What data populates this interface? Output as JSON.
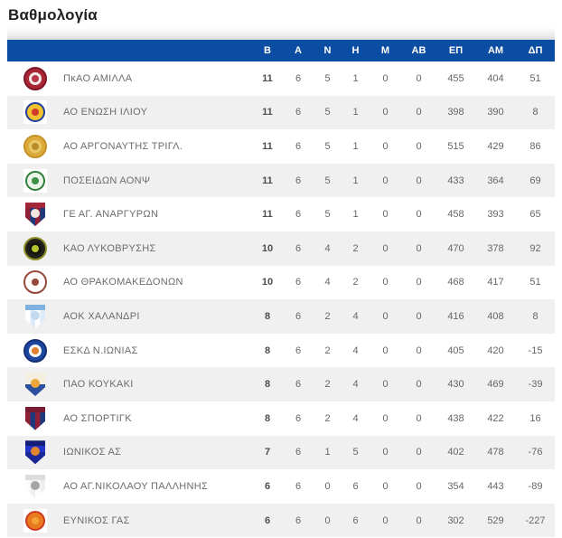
{
  "page": {
    "title": "Βαθμολογία"
  },
  "colors": {
    "header_bg": "#0b4da2",
    "header_text": "#ffffff",
    "row_bg": "#ffffff",
    "row_alt_bg": "#f0f0f0",
    "name_text": "#6c6c6c",
    "stat_text": "#666666",
    "points_text": "#4d4d4d",
    "title_text": "#1f1f1f"
  },
  "table": {
    "columns": [
      "Β",
      "Α",
      "Ν",
      "Η",
      "Μ",
      "ΑΒ",
      "ΕΠ",
      "ΑΜ",
      "ΔΠ"
    ],
    "rows": [
      {
        "team": "ΠκΑΟ ΑΜΙΛΛΑ",
        "logo": {
          "shape": "circle",
          "outer": "#a82737",
          "ring": "#7e1727",
          "inner": "#f3e9e9",
          "core": "#b8374a"
        },
        "stats": [
          11,
          6,
          5,
          1,
          0,
          0,
          455,
          404,
          51
        ]
      },
      {
        "team": "ΑΟ ΕΝΩΣΗ ΙΛΙΟΥ",
        "logo": {
          "shape": "square-circle",
          "square": "#ffffff",
          "ring": "#1e3f9e",
          "inner": "#f2c12e",
          "core": "#cf3a2a"
        },
        "stats": [
          11,
          6,
          5,
          1,
          0,
          0,
          398,
          390,
          8
        ]
      },
      {
        "team": "ΑΟ ΑΡΓΟΝΑΥΤΗΣ ΤΡΙΓΛ.",
        "logo": {
          "shape": "circle",
          "outer": "#dcab3c",
          "ring": "#c49127",
          "inner": "#e9c967",
          "core": "#bb8c2c"
        },
        "stats": [
          11,
          6,
          5,
          1,
          0,
          0,
          515,
          429,
          86
        ]
      },
      {
        "team": "ΠΟΣΕΙΔΩΝ ΑΟΝΨ",
        "logo": {
          "shape": "square-circle",
          "square": "#ffffff",
          "ring": "#2f7d36",
          "inner": "#eaf4ea",
          "core": "#3c9147"
        },
        "stats": [
          11,
          6,
          5,
          1,
          0,
          0,
          433,
          364,
          69
        ]
      },
      {
        "team": "ΓΕ ΑΓ. ΑΝΑΡΓΥΡΩΝ",
        "logo": {
          "shape": "shield",
          "stripes": [
            "#8e2038",
            "#1e3a7c",
            "#8e2038",
            "#1e3a7c"
          ],
          "band": "#a32638",
          "emblem": "#f2e8e0",
          "dir": "h"
        },
        "stats": [
          11,
          6,
          5,
          1,
          0,
          0,
          458,
          393,
          65
        ]
      },
      {
        "team": "ΚΑΟ ΛΥΚΟΒΡΥΣΗΣ",
        "logo": {
          "shape": "circle",
          "outer": "#20201a",
          "ring": "#8f8f2a",
          "inner": "#14140f",
          "core": "#b4c42f"
        },
        "stats": [
          10,
          6,
          4,
          2,
          0,
          0,
          470,
          378,
          92
        ]
      },
      {
        "team": "ΑΟ ΘΡΑΚΟΜΑΚΕΔΟΝΩΝ",
        "logo": {
          "shape": "circle",
          "outer": "#ffffff",
          "ring": "#96493a",
          "inner": "#fdf9f7",
          "core": "#96493a"
        },
        "stats": [
          10,
          6,
          4,
          2,
          0,
          0,
          468,
          417,
          51
        ]
      },
      {
        "team": "ΑΟΚ ΧΑΛΑΝΔΡΙ",
        "logo": {
          "shape": "shield",
          "stripes": [
            "#ffffff",
            "#dcebf7",
            "#ffffff",
            "#dcebf7"
          ],
          "band": "#7fb2e0",
          "emblem": "#c3d9ee",
          "dir": "h"
        },
        "stats": [
          8,
          6,
          2,
          4,
          0,
          0,
          416,
          408,
          8
        ]
      },
      {
        "team": "ΕΣΚΔ Ν.ΙΩΝΙΑΣ",
        "logo": {
          "shape": "circle",
          "outer": "#1d46a0",
          "ring": "#142f75",
          "inner": "#f6f6f6",
          "core": "#e08030"
        },
        "stats": [
          8,
          6,
          2,
          4,
          0,
          0,
          405,
          420,
          -15
        ]
      },
      {
        "team": "ΠΑΟ ΚΟΥΚΑΚΙ",
        "logo": {
          "shape": "shield",
          "stripes": [
            "#f3eedd",
            "#f3eedd",
            "#2c4f9e",
            "#2c4f9e"
          ],
          "band": null,
          "emblem": "#eda73a",
          "dir": "v"
        },
        "stats": [
          8,
          6,
          2,
          4,
          0,
          0,
          430,
          469,
          -39
        ]
      },
      {
        "team": "ΑΟ ΣΠΟΡΤΙΓΚ",
        "logo": {
          "shape": "shield",
          "stripes": [
            "#8e2038",
            "#1e3a7c",
            "#8e2038",
            "#1e3a7c"
          ],
          "band": "#7a1b33",
          "emblem": null,
          "dir": "h"
        },
        "stats": [
          8,
          6,
          2,
          4,
          0,
          0,
          438,
          422,
          16
        ]
      },
      {
        "team": "ΙΩΝΙΚΟΣ ΑΣ",
        "logo": {
          "shape": "shield",
          "stripes": [
            "#2433c8",
            "#2433c8",
            "#1b2796",
            "#1b2796"
          ],
          "band": "#141d77",
          "emblem": "#e2862f",
          "dir": "v"
        },
        "stats": [
          7,
          6,
          1,
          5,
          0,
          0,
          402,
          478,
          -76
        ]
      },
      {
        "team": "ΑΟ ΑΓ.ΝΙΚΟΛΑΟΥ ΠΑΛΛΗΝΗΣ",
        "logo": {
          "shape": "shield",
          "stripes": [
            "#fcfcfc",
            "#efefef",
            "#fcfcfc",
            "#efefef"
          ],
          "band": "#dddddd",
          "emblem": "#a5a5a5",
          "dir": "h"
        },
        "stats": [
          6,
          6,
          0,
          6,
          0,
          0,
          354,
          443,
          -89
        ]
      },
      {
        "team": "ΕΥΝΙΚΟΣ ΓΑΣ",
        "logo": {
          "shape": "square-circle",
          "square": "#ffffff",
          "ring": "#cf3a20",
          "inner": "#e8791f",
          "core": "#f2a437"
        },
        "stats": [
          6,
          6,
          0,
          6,
          0,
          0,
          302,
          529,
          -227
        ]
      }
    ]
  }
}
